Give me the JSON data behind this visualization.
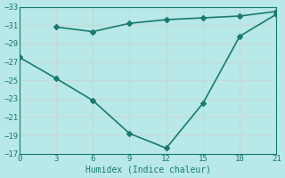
{
  "xlabel": "Humidex (Indice chaleur)",
  "line1_x": [
    0,
    3,
    6,
    9,
    12,
    15,
    18,
    21
  ],
  "line1_y": [
    -27.5,
    -25.2,
    -22.8,
    -19.2,
    -17.6,
    -22.5,
    -29.8,
    -32.2
  ],
  "line2_x": [
    3,
    6,
    9,
    12,
    15,
    18,
    21
  ],
  "line2_y": [
    -30.8,
    -30.3,
    -31.2,
    -31.6,
    -31.8,
    -32.0,
    -32.5
  ],
  "line_color": "#1a7a6e",
  "bg_color": "#b8e8e8",
  "grid_color": "#c8d8d8",
  "xlim": [
    0,
    21
  ],
  "ylim": [
    -33,
    -17
  ],
  "xticks": [
    0,
    3,
    6,
    9,
    12,
    15,
    18,
    21
  ],
  "yticks": [
    -17,
    -19,
    -21,
    -23,
    -25,
    -27,
    -29,
    -31,
    -33
  ],
  "marker": "D",
  "marker_size": 3,
  "linewidth": 1.2
}
